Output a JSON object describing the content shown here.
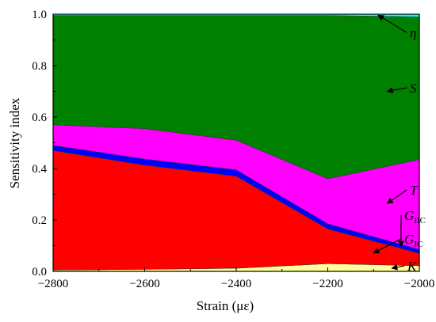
{
  "chart_data": {
    "type": "area",
    "stacked": true,
    "xlabel": "Strain (με)",
    "ylabel": "Sensitivity index",
    "xlim": [
      -2800,
      -2000
    ],
    "ylim": [
      0,
      1.0
    ],
    "x": [
      -2800,
      -2600,
      -2400,
      -2200,
      -2000
    ],
    "x_ticks": [
      "-2800",
      "-2600",
      "-2400",
      "-2200",
      "-2000"
    ],
    "y_ticks": [
      "0.0",
      "0.2",
      "0.4",
      "0.6",
      "0.8",
      "1.0"
    ],
    "grid": false,
    "series": [
      {
        "name": "K",
        "color": "#ffff99",
        "values": [
          0.005,
          0.008,
          0.012,
          0.03,
          0.022
        ]
      },
      {
        "name": "GIC",
        "color": "#ff0000",
        "values": [
          0.465,
          0.405,
          0.358,
          0.135,
          0.048
        ]
      },
      {
        "name": "GIIC",
        "color": "#0000ff",
        "values": [
          0.02,
          0.024,
          0.025,
          0.02,
          0.015
        ]
      },
      {
        "name": "T",
        "color": "#ff00ff",
        "values": [
          0.08,
          0.118,
          0.115,
          0.175,
          0.35
        ]
      },
      {
        "name": "S",
        "color": "#008000",
        "values": [
          0.425,
          0.44,
          0.485,
          0.635,
          0.555
        ]
      },
      {
        "name": "η",
        "color": "#00ffff",
        "values": [
          0.005,
          0.005,
          0.005,
          0.005,
          0.01
        ]
      }
    ],
    "annotations": [
      {
        "label": "η",
        "sub": "",
        "series": "η"
      },
      {
        "label": "S",
        "sub": "",
        "series": "S"
      },
      {
        "label": "T",
        "sub": "",
        "series": "T"
      },
      {
        "label": "G",
        "sub": "IIC",
        "series": "GIIC"
      },
      {
        "label": "G",
        "sub": "IC",
        "series": "GIC"
      },
      {
        "label": "K",
        "sub": "",
        "series": "K"
      }
    ]
  }
}
